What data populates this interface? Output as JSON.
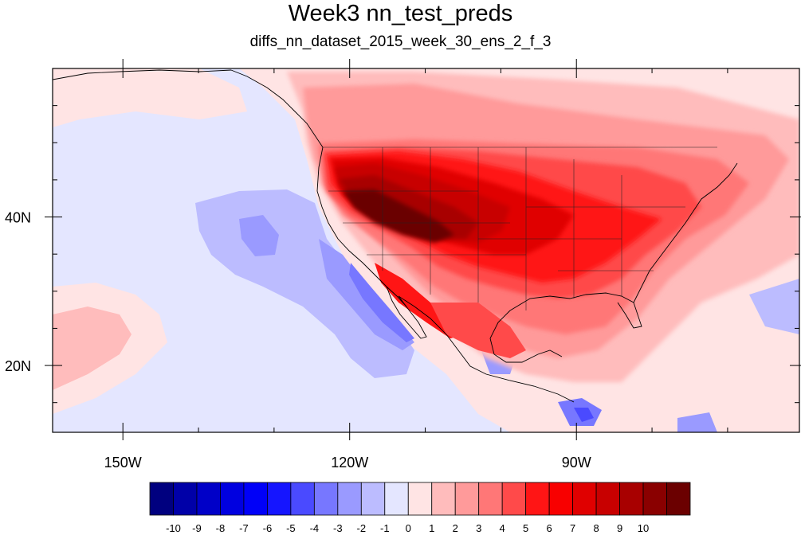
{
  "title": "Week3 nn_test_preds",
  "subtitle": "diffs_nn_dataset_2015_week_30_ens_2_f_3",
  "map": {
    "lat_labels": [
      {
        "lat": 40,
        "text": "40N"
      },
      {
        "lat": 20,
        "text": "20N"
      }
    ],
    "lon_labels": [
      {
        "lon": -150,
        "text": "150W"
      },
      {
        "lon": -120,
        "text": "120W"
      },
      {
        "lon": -90,
        "text": "90W"
      }
    ],
    "extent": {
      "lon_min": -159.3,
      "lon_max": -60.5,
      "lat_min": 11,
      "lat_max": 60
    }
  },
  "colorbar": {
    "colors": [
      "#00007f",
      "#0000a8",
      "#0000c8",
      "#0000e0",
      "#0000f8",
      "#1515ff",
      "#4a4aff",
      "#7777ff",
      "#9a9aff",
      "#bcbcff",
      "#e4e6ff",
      "#ffe4e4",
      "#ffbcbc",
      "#ff9a9a",
      "#ff7777",
      "#ff4a4a",
      "#ff1515",
      "#f80000",
      "#e00000",
      "#c80000",
      "#a80000",
      "#8a0000",
      "#6b0000"
    ],
    "labels": [
      "-10",
      "-9",
      "-8",
      "-7",
      "-6",
      "-5",
      "-4",
      "-3",
      "-2",
      "-1",
      "0",
      "1",
      "2",
      "3",
      "4",
      "5",
      "6",
      "7",
      "8",
      "9",
      "10"
    ]
  }
}
